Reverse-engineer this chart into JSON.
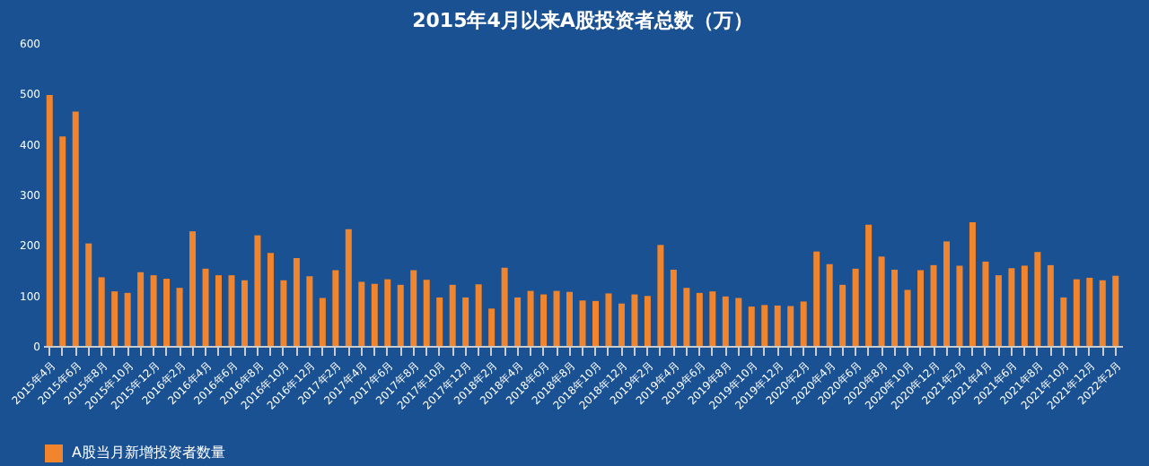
{
  "chart_data": {
    "type": "bar",
    "title": "2015年4月以来A股投资者总数（万）",
    "categories": [
      "2015年4月",
      null,
      "2015年6月",
      null,
      "2015年8月",
      null,
      "2015年10月",
      null,
      "2015年12月",
      null,
      "2016年2月",
      null,
      "2016年4月",
      null,
      "2016年6月",
      null,
      "2016年8月",
      null,
      "2016年10月",
      null,
      "2016年12月",
      null,
      "2017年2月",
      null,
      "2017年4月",
      null,
      "2017年6月",
      null,
      "2017年8月",
      null,
      "2017年10月",
      null,
      "2017年12月",
      null,
      "2018年2月",
      null,
      "2018年4月",
      null,
      "2018年6月",
      null,
      "2018年8月",
      null,
      "2018年10月",
      null,
      "2018年12月",
      null,
      "2019年2月",
      null,
      "2019年4月",
      null,
      "2019年6月",
      null,
      "2019年8月",
      null,
      "2019年10月",
      null,
      "2019年12月",
      null,
      "2020年2月",
      null,
      "2020年4月",
      null,
      "2020年6月",
      null,
      "2020年8月",
      null,
      "2020年10月",
      null,
      "2020年12月",
      null,
      "2021年2月",
      null,
      "2021年4月",
      null,
      "2021年6月",
      null,
      "2021年8月",
      null,
      "2021年10月",
      null,
      "2021年12月",
      null,
      "2022年2月"
    ],
    "series": [
      {
        "name": "A股当月新增投资者数量",
        "color": "#f0852d",
        "values": [
          497,
          415,
          464,
          203,
          136,
          108,
          105,
          146,
          140,
          133,
          115,
          227,
          153,
          140,
          140,
          130,
          219,
          184,
          130,
          174,
          138,
          95,
          150,
          231,
          127,
          123,
          132,
          121,
          150,
          131,
          96,
          121,
          96,
          122,
          74,
          155,
          96,
          109,
          102,
          109,
          107,
          90,
          89,
          104,
          84,
          102,
          99,
          200,
          151,
          115,
          105,
          108,
          98,
          95,
          78,
          81,
          80,
          79,
          88,
          187,
          162,
          121,
          153,
          240,
          177,
          151,
          111,
          150,
          160,
          207,
          159,
          245,
          167,
          140,
          154,
          159,
          186,
          160,
          96,
          132,
          135,
          130,
          139
        ]
      }
    ],
    "ylim": [
      0,
      600
    ],
    "yticks": [
      0,
      100,
      200,
      300,
      400,
      500,
      600
    ],
    "grid": false,
    "legend": "bottom"
  }
}
